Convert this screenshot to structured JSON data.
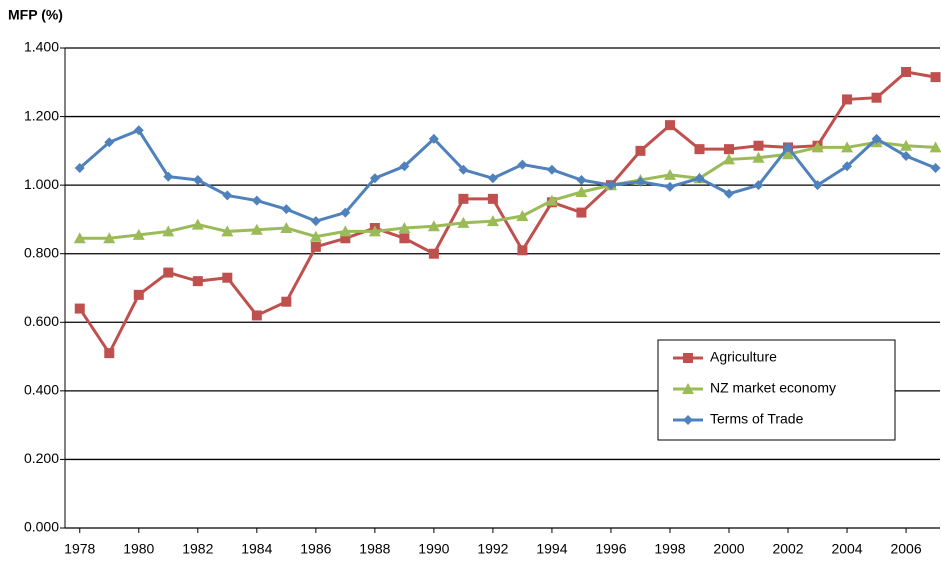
{
  "chart_data": {
    "type": "line",
    "y_label": "MFP (%)",
    "x": [
      1978,
      1979,
      1980,
      1981,
      1982,
      1983,
      1984,
      1985,
      1986,
      1987,
      1988,
      1989,
      1990,
      1991,
      1992,
      1993,
      1994,
      1995,
      1996,
      1997,
      1998,
      1999,
      2000,
      2001,
      2002,
      2003,
      2004,
      2005,
      2006,
      2007
    ],
    "series": [
      {
        "name": "Agriculture",
        "color": "#c0504d",
        "marker": "square",
        "values": [
          0.64,
          0.51,
          0.68,
          0.745,
          0.72,
          0.73,
          0.62,
          0.66,
          0.82,
          0.845,
          0.875,
          0.845,
          0.8,
          0.96,
          0.96,
          0.81,
          0.95,
          0.92,
          1.0,
          1.1,
          1.175,
          1.105,
          1.105,
          1.115,
          1.11,
          1.115,
          1.25,
          1.255,
          1.33,
          1.315
        ]
      },
      {
        "name": "NZ market economy",
        "color": "#9bbb59",
        "marker": "triangle",
        "values": [
          0.845,
          0.845,
          0.855,
          0.865,
          0.885,
          0.865,
          0.87,
          0.875,
          0.85,
          0.865,
          0.865,
          0.875,
          0.88,
          0.89,
          0.895,
          0.91,
          0.955,
          0.98,
          1.0,
          1.015,
          1.03,
          1.02,
          1.075,
          1.08,
          1.09,
          1.11,
          1.11,
          1.125,
          1.115,
          1.11
        ]
      },
      {
        "name": "Terms of Trade",
        "color": "#4f81bd",
        "marker": "diamond",
        "values": [
          1.05,
          1.125,
          1.16,
          1.025,
          1.015,
          0.97,
          0.955,
          0.93,
          0.895,
          0.92,
          1.02,
          1.055,
          1.135,
          1.045,
          1.02,
          1.06,
          1.045,
          1.015,
          1.0,
          1.01,
          0.995,
          1.02,
          0.975,
          1.0,
          1.11,
          1.0,
          1.055,
          1.135,
          1.085,
          1.05
        ]
      }
    ],
    "xlim": [
      1977.5,
      2007.15
    ],
    "xticks": [
      1978,
      1980,
      1982,
      1984,
      1986,
      1988,
      1990,
      1992,
      1994,
      1996,
      1998,
      2000,
      2002,
      2004,
      2006
    ],
    "ylim": [
      0,
      1.4
    ],
    "yticks": [
      {
        "value": 0,
        "label": "0.000"
      },
      {
        "value": 0.2,
        "label": "0.200"
      },
      {
        "value": 0.4,
        "label": "0.400"
      },
      {
        "value": 0.6,
        "label": "0.600"
      },
      {
        "value": 0.8,
        "label": "0.800"
      },
      {
        "value": 1.0,
        "label": "1.000"
      },
      {
        "value": 1.2,
        "label": "1.200"
      },
      {
        "value": 1.4,
        "label": "1.400"
      }
    ],
    "grid": true,
    "legend": "lower-right"
  }
}
